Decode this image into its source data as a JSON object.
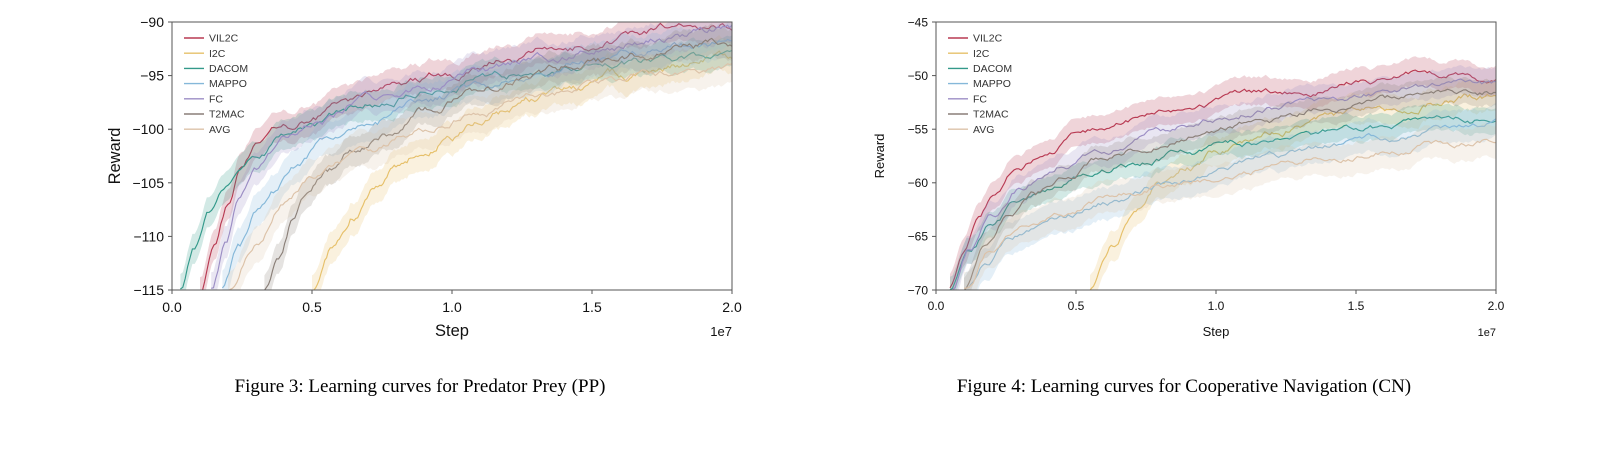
{
  "page": {
    "background": "#ffffff"
  },
  "figures": [
    {
      "caption": "Figure 3: Learning curves for Predator Prey (PP)"
    },
    {
      "caption": "Figure 4: Learning curves for Cooperative Navigation (CN)"
    }
  ],
  "chart_data": [
    {
      "type": "line",
      "title": "",
      "xlabel": "Step",
      "ylabel": "Reward",
      "x_offset_label": "1e7",
      "xlim": [
        0,
        2.0
      ],
      "ylim": [
        -115,
        -90
      ],
      "xticks": [
        0.0,
        0.5,
        1.0,
        1.5,
        2.0
      ],
      "yticks": [
        -90,
        -95,
        -100,
        -105,
        -110,
        -115
      ],
      "grid": false,
      "legend_position": "upper left",
      "tick_fontsize": 14,
      "label_fontsize": 16.5,
      "series": [
        {
          "name": "VIL2C",
          "color": "#b83a52",
          "band": 1.4,
          "noise": 0.5,
          "x": [
            0.1,
            0.15,
            0.2,
            0.25,
            0.3,
            0.4,
            0.5,
            0.6,
            0.8,
            1.0,
            1.2,
            1.4,
            1.6,
            1.8,
            2.0
          ],
          "y": [
            -115,
            -111.5,
            -107.5,
            -103.5,
            -101.5,
            -100,
            -99,
            -98,
            -96.3,
            -94.8,
            -93.4,
            -92.4,
            -91.4,
            -90.6,
            -90.3
          ]
        },
        {
          "name": "I2C",
          "color": "#e6c06a",
          "band": 1.5,
          "noise": 0.5,
          "x": [
            0.5,
            0.58,
            0.65,
            0.72,
            0.8,
            0.9,
            1.0,
            1.2,
            1.4,
            1.6,
            1.8,
            2.0
          ],
          "y": [
            -115,
            -111,
            -108,
            -105.8,
            -103.5,
            -102,
            -100.5,
            -98.3,
            -96.4,
            -95.0,
            -93.9,
            -93.3
          ]
        },
        {
          "name": "DACOM",
          "color": "#33998a",
          "band": 1.4,
          "noise": 0.5,
          "x": [
            0.03,
            0.08,
            0.13,
            0.2,
            0.3,
            0.4,
            0.5,
            0.7,
            0.9,
            1.1,
            1.3,
            1.6,
            1.8,
            2.0
          ],
          "y": [
            -115,
            -111,
            -107.5,
            -105,
            -102.5,
            -100.8,
            -99.6,
            -97.6,
            -96.4,
            -95.4,
            -94.6,
            -93.9,
            -93.6,
            -93.2
          ]
        },
        {
          "name": "MAPPO",
          "color": "#85b8d9",
          "band": 1.6,
          "noise": 0.5,
          "x": [
            0.18,
            0.24,
            0.3,
            0.36,
            0.45,
            0.55,
            0.7,
            0.9,
            1.1,
            1.3,
            1.5,
            1.7,
            2.0
          ],
          "y": [
            -115,
            -111,
            -108,
            -106,
            -103.5,
            -101.5,
            -99.6,
            -97.6,
            -96,
            -94.6,
            -93.5,
            -92.6,
            -91.8
          ]
        },
        {
          "name": "FC",
          "color": "#9b8dc4",
          "band": 1.5,
          "noise": 0.5,
          "x": [
            0.14,
            0.19,
            0.24,
            0.3,
            0.4,
            0.5,
            0.7,
            0.9,
            1.1,
            1.3,
            1.5,
            1.7,
            2.0
          ],
          "y": [
            -115,
            -111,
            -107,
            -104,
            -101.2,
            -99.6,
            -97.6,
            -96.1,
            -94.7,
            -93.6,
            -92.6,
            -91.6,
            -90.8
          ]
        },
        {
          "name": "T2MAC",
          "color": "#8a7f78",
          "band": 1.4,
          "noise": 0.5,
          "x": [
            0.33,
            0.38,
            0.43,
            0.48,
            0.55,
            0.65,
            0.75,
            0.9,
            1.1,
            1.3,
            1.5,
            1.7,
            2.0
          ],
          "y": [
            -115,
            -112,
            -108.5,
            -106,
            -103.8,
            -101.8,
            -100.2,
            -98.3,
            -96.4,
            -94.9,
            -93.8,
            -92.9,
            -92.0
          ]
        },
        {
          "name": "AVG",
          "color": "#dcc2a8",
          "band": 1.7,
          "noise": 0.45,
          "x": [
            0.2,
            0.3,
            0.4,
            0.5,
            0.7,
            0.9,
            1.1,
            1.3,
            1.5,
            1.7,
            2.0
          ],
          "y": [
            -115,
            -110.5,
            -106.5,
            -104.3,
            -101.8,
            -100.2,
            -98.3,
            -96.8,
            -95.8,
            -95.0,
            -94.4
          ]
        }
      ]
    },
    {
      "type": "line",
      "title": "",
      "xlabel": "Step",
      "ylabel": "Reward",
      "x_offset_label": "1e7",
      "xlim": [
        0,
        2.0
      ],
      "ylim": [
        -70,
        -45
      ],
      "xticks": [
        0.0,
        0.5,
        1.0,
        1.5,
        2.0
      ],
      "yticks": [
        -45,
        -50,
        -55,
        -60,
        -65,
        -70
      ],
      "grid": false,
      "legend_position": "upper left",
      "tick_fontsize": 12,
      "label_fontsize": 13,
      "series": [
        {
          "name": "VIL2C",
          "color": "#b83a52",
          "band": 1.3,
          "noise": 0.4,
          "x": [
            0.05,
            0.1,
            0.15,
            0.2,
            0.3,
            0.4,
            0.5,
            0.7,
            0.9,
            1.1,
            1.3,
            1.5,
            1.7,
            1.85,
            2.0
          ],
          "y": [
            -70,
            -67,
            -63.8,
            -61.5,
            -58.6,
            -56.8,
            -55.6,
            -54.1,
            -53.0,
            -52.0,
            -51.3,
            -50.7,
            -50.0,
            -49.8,
            -50.4
          ]
        },
        {
          "name": "I2C",
          "color": "#e6c06a",
          "band": 1.4,
          "noise": 0.4,
          "x": [
            0.55,
            0.63,
            0.7,
            0.8,
            0.9,
            1.0,
            1.2,
            1.4,
            1.6,
            1.8,
            2.0
          ],
          "y": [
            -70,
            -66,
            -63,
            -60.2,
            -58.5,
            -57.2,
            -55.3,
            -53.9,
            -53.0,
            -52.3,
            -52.0
          ]
        },
        {
          "name": "DACOM",
          "color": "#33998a",
          "band": 1.2,
          "noise": 0.4,
          "x": [
            0.05,
            0.12,
            0.2,
            0.3,
            0.4,
            0.55,
            0.7,
            0.9,
            1.1,
            1.3,
            1.5,
            1.7,
            2.0
          ],
          "y": [
            -70,
            -66.5,
            -63.8,
            -61.8,
            -60.5,
            -59.2,
            -58.2,
            -57.1,
            -56.4,
            -55.6,
            -55.0,
            -54.6,
            -54.2
          ]
        },
        {
          "name": "MAPPO",
          "color": "#85b8d9",
          "band": 1.5,
          "noise": 0.4,
          "x": [
            0.1,
            0.18,
            0.26,
            0.35,
            0.45,
            0.6,
            0.8,
            1.0,
            1.2,
            1.4,
            1.6,
            1.8,
            2.0
          ],
          "y": [
            -70,
            -67.3,
            -65.5,
            -64.2,
            -63.2,
            -61.8,
            -60.3,
            -58.9,
            -57.5,
            -56.5,
            -55.6,
            -55.0,
            -54.5
          ]
        },
        {
          "name": "FC",
          "color": "#9b8dc4",
          "band": 1.3,
          "noise": 0.4,
          "x": [
            0.06,
            0.12,
            0.2,
            0.3,
            0.45,
            0.6,
            0.8,
            1.0,
            1.2,
            1.4,
            1.6,
            1.8,
            2.0
          ],
          "y": [
            -70,
            -66.3,
            -62.9,
            -60.3,
            -58.1,
            -56.7,
            -55.2,
            -54.0,
            -53.0,
            -52.2,
            -51.5,
            -50.9,
            -50.8
          ]
        },
        {
          "name": "T2MAC",
          "color": "#8a7f78",
          "band": 1.2,
          "noise": 0.4,
          "x": [
            0.1,
            0.18,
            0.26,
            0.35,
            0.45,
            0.6,
            0.8,
            1.0,
            1.2,
            1.4,
            1.6,
            1.8,
            2.0
          ],
          "y": [
            -70,
            -65.8,
            -63.2,
            -61.2,
            -59.6,
            -57.9,
            -56.3,
            -55.1,
            -54.1,
            -53.1,
            -52.3,
            -51.6,
            -51.4
          ]
        },
        {
          "name": "AVG",
          "color": "#dcc2a8",
          "band": 1.5,
          "noise": 0.4,
          "x": [
            0.1,
            0.2,
            0.32,
            0.45,
            0.6,
            0.8,
            1.0,
            1.2,
            1.4,
            1.6,
            1.8,
            2.0
          ],
          "y": [
            -70,
            -66.2,
            -63.8,
            -62.4,
            -61.4,
            -60.4,
            -59.5,
            -58.6,
            -57.7,
            -57.0,
            -56.4,
            -56.0
          ]
        }
      ]
    }
  ]
}
